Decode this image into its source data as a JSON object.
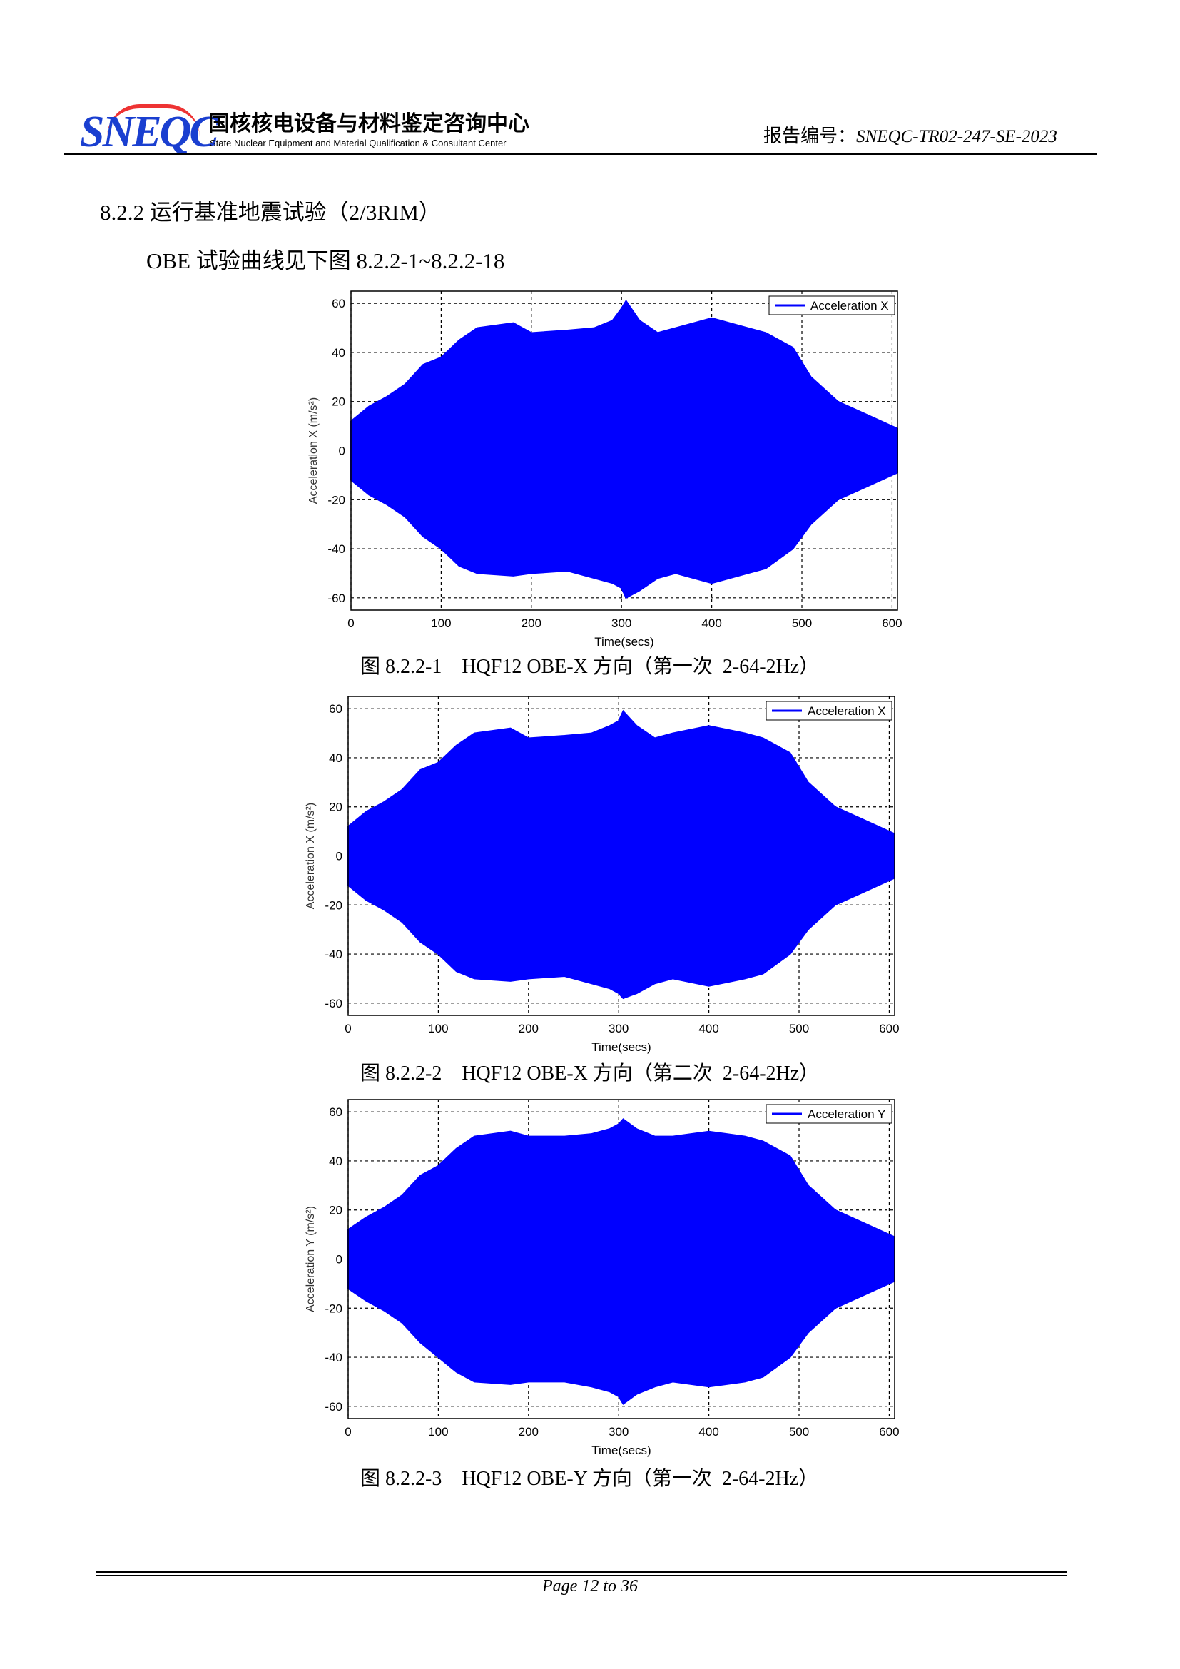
{
  "header": {
    "logo_text": "SNEQC",
    "org_cn": "国核核电设备与材料鉴定咨询中心",
    "org_en": "State Nuclear Equipment and Material Qualification & Consultant Center",
    "report_label": "报告编号：",
    "report_no": "SNEQC-TR02-247-SE-2023"
  },
  "section_title": "8.2.2 运行基准地震试验（2/3RIM）",
  "intro": "OBE 试验曲线见下图 8.2.2-1~8.2.2-18",
  "chart_data": [
    {
      "type": "area",
      "caption": "图 8.2.2-1　HQF12 OBE-X 方向（第一次  2-64-2Hz）",
      "legend": "Acceleration X",
      "legend_position": "top-right",
      "xlabel": "Time(secs)",
      "ylabel": "Acceleration X (m/s²)",
      "xlim": [
        0,
        606
      ],
      "ylim": [
        -65,
        65
      ],
      "xticks": [
        0,
        100,
        200,
        300,
        400,
        500,
        600
      ],
      "yticks": [
        -60,
        -40,
        -20,
        0,
        20,
        40,
        60
      ],
      "grid": true,
      "color": "#0000ff",
      "x": [
        0,
        20,
        40,
        60,
        80,
        100,
        120,
        140,
        180,
        200,
        240,
        270,
        290,
        300,
        305,
        320,
        340,
        360,
        400,
        440,
        460,
        490,
        510,
        540,
        570,
        600,
        606
      ],
      "upper": [
        12,
        18,
        22,
        27,
        35,
        38,
        45,
        50,
        52,
        48,
        49,
        50,
        53,
        58,
        61,
        53,
        48,
        50,
        54,
        50,
        48,
        42,
        30,
        20,
        15,
        10,
        9
      ],
      "lower": [
        -12,
        -18,
        -22,
        -27,
        -35,
        -40,
        -47,
        -50,
        -51,
        -50,
        -49,
        -52,
        -54,
        -56,
        -60,
        -57,
        -52,
        -50,
        -54,
        -50,
        -48,
        -40,
        -30,
        -20,
        -15,
        -10,
        -9
      ]
    },
    {
      "type": "area",
      "caption": "图 8.2.2-2　HQF12 OBE-X 方向（第二次  2-64-2Hz）",
      "legend": "Acceleration X",
      "legend_position": "top-right",
      "xlabel": "Time(secs)",
      "ylabel": "Acceleration X (m/s²)",
      "xlim": [
        0,
        606
      ],
      "ylim": [
        -65,
        65
      ],
      "xticks": [
        0,
        100,
        200,
        300,
        400,
        500,
        600
      ],
      "yticks": [
        -60,
        -40,
        -20,
        0,
        20,
        40,
        60
      ],
      "grid": true,
      "color": "#0000ff",
      "x": [
        0,
        20,
        40,
        60,
        80,
        100,
        120,
        140,
        180,
        200,
        240,
        270,
        290,
        300,
        305,
        320,
        340,
        360,
        400,
        440,
        460,
        490,
        510,
        540,
        570,
        600,
        606
      ],
      "upper": [
        12,
        18,
        22,
        27,
        35,
        38,
        45,
        50,
        52,
        48,
        49,
        50,
        53,
        55,
        59,
        53,
        48,
        50,
        53,
        50,
        48,
        42,
        30,
        20,
        15,
        10,
        9
      ],
      "lower": [
        -12,
        -18,
        -22,
        -27,
        -35,
        -40,
        -47,
        -50,
        -51,
        -50,
        -49,
        -52,
        -54,
        -56,
        -58,
        -56,
        -52,
        -50,
        -53,
        -50,
        -48,
        -40,
        -30,
        -20,
        -15,
        -10,
        -9
      ]
    },
    {
      "type": "area",
      "caption": "图 8.2.2-3　HQF12 OBE-Y 方向（第一次  2-64-2Hz）",
      "legend": "Acceleration Y",
      "legend_position": "top-right",
      "xlabel": "Time(secs)",
      "ylabel": "Acceleration Y (m/s²)",
      "xlim": [
        0,
        606
      ],
      "ylim": [
        -65,
        65
      ],
      "xticks": [
        0,
        100,
        200,
        300,
        400,
        500,
        600
      ],
      "yticks": [
        -60,
        -40,
        -20,
        0,
        20,
        40,
        60
      ],
      "grid": true,
      "color": "#0000ff",
      "x": [
        0,
        20,
        40,
        60,
        80,
        100,
        120,
        140,
        180,
        200,
        240,
        270,
        290,
        300,
        305,
        320,
        340,
        360,
        400,
        440,
        460,
        490,
        510,
        540,
        570,
        600,
        606
      ],
      "upper": [
        12,
        17,
        21,
        26,
        34,
        38,
        45,
        50,
        52,
        50,
        50,
        51,
        53,
        55,
        57,
        53,
        50,
        50,
        52,
        50,
        48,
        42,
        30,
        20,
        15,
        10,
        9
      ],
      "lower": [
        -12,
        -17,
        -21,
        -26,
        -34,
        -40,
        -46,
        -50,
        -51,
        -50,
        -50,
        -52,
        -54,
        -56,
        -59,
        -55,
        -52,
        -50,
        -52,
        -50,
        -48,
        -40,
        -30,
        -20,
        -15,
        -10,
        -9
      ]
    }
  ],
  "footer": "Page 12 to 36"
}
